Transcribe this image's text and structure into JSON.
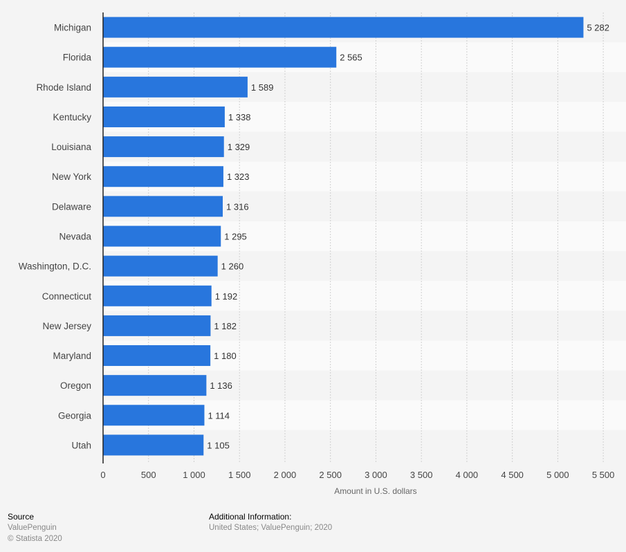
{
  "chart_data": {
    "type": "bar",
    "orientation": "horizontal",
    "categories": [
      "Michigan",
      "Florida",
      "Rhode Island",
      "Kentucky",
      "Louisiana",
      "New York",
      "Delaware",
      "Nevada",
      "Washington, D.C.",
      "Connecticut",
      "New Jersey",
      "Maryland",
      "Oregon",
      "Georgia",
      "Utah"
    ],
    "values": [
      5282,
      2565,
      1589,
      1338,
      1329,
      1323,
      1316,
      1295,
      1260,
      1192,
      1182,
      1180,
      1136,
      1114,
      1105
    ],
    "value_labels": [
      "5 282",
      "2 565",
      "1 589",
      "1 338",
      "1 329",
      "1 323",
      "1 316",
      "1 295",
      "1 260",
      "1 192",
      "1 182",
      "1 180",
      "1 136",
      "1 114",
      "1 105"
    ],
    "xlabel": "Amount in U.S. dollars",
    "ylabel": "",
    "xlim": [
      0,
      5750
    ],
    "xticks": [
      0,
      500,
      1000,
      1500,
      2000,
      2500,
      3000,
      3500,
      4000,
      4500,
      5000,
      5500
    ],
    "xtick_labels": [
      "0",
      "500",
      "1 000",
      "1 500",
      "2 000",
      "2 500",
      "3 000",
      "3 500",
      "4 000",
      "4 500",
      "5 000",
      "5 500"
    ],
    "grid": true,
    "colors": {
      "bar": "#2876dd",
      "band_light": "#fafafa",
      "band_dark": "#f4f4f4"
    }
  },
  "footer": {
    "source_title": "Source",
    "source_name": "ValuePenguin",
    "copyright": "© Statista 2020",
    "info_title": "Additional Information:",
    "info_text": "United States; ValuePenguin; 2020"
  }
}
